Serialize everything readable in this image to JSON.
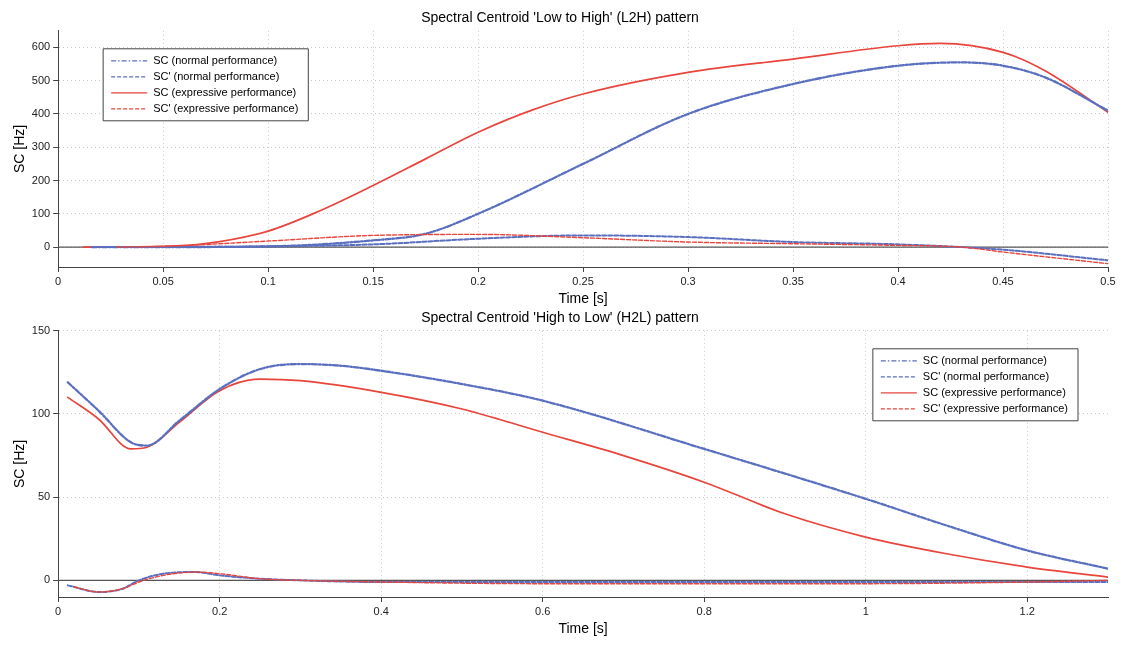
{
  "chart_data": [
    {
      "type": "line",
      "title": "Spectral Centroid 'Low to High' (L2H) pattern",
      "xlabel": "Time [s]",
      "ylabel": "SC [Hz]",
      "xlim": [
        0,
        0.5
      ],
      "xticks": [
        0,
        0.05,
        0.1,
        0.15,
        0.2,
        0.25,
        0.3,
        0.35,
        0.4,
        0.45,
        0.5
      ],
      "ylim": [
        -60,
        650
      ],
      "yticks": [
        0,
        100,
        200,
        300,
        400,
        500,
        600
      ],
      "grid": true,
      "legend": "top left",
      "ref_lines": [
        {
          "axis": "y",
          "value": 0,
          "color": "#555555",
          "line_style": "solid"
        }
      ],
      "series": [
        {
          "name": "SC (normal performance)",
          "color": "#5a6fbf",
          "line_style": "dashdot",
          "x": [
            0.016,
            0.05,
            0.1,
            0.15,
            0.175,
            0.2,
            0.25,
            0.3,
            0.35,
            0.4,
            0.43,
            0.45,
            0.47,
            0.5
          ],
          "values": [
            0,
            0,
            2,
            20,
            40,
            100,
            250,
            400,
            490,
            545,
            555,
            545,
            510,
            410
          ]
        },
        {
          "name": "SC' (normal performance)",
          "color": "#5a6fbf",
          "line_style": "dashed",
          "x": [
            0.022,
            0.05,
            0.1,
            0.15,
            0.2,
            0.25,
            0.3,
            0.35,
            0.4,
            0.45,
            0.5
          ],
          "values": [
            0,
            0,
            2,
            8,
            25,
            35,
            30,
            15,
            8,
            -8,
            -40
          ]
        },
        {
          "name": "SC (expressive performance)",
          "color": "#e8453c",
          "line_style": "solid",
          "x": [
            0.012,
            0.05,
            0.07,
            0.1,
            0.125,
            0.15,
            0.175,
            0.2,
            0.225,
            0.25,
            0.3,
            0.35,
            0.4,
            0.42,
            0.45,
            0.47,
            0.5
          ],
          "values": [
            0,
            2,
            10,
            48,
            110,
            185,
            265,
            345,
            410,
            460,
            525,
            565,
            605,
            612,
            585,
            530,
            405
          ]
        },
        {
          "name": "SC' (expressive performance)",
          "color": "#e8453c",
          "line_style": "dashed",
          "x": [
            0.028,
            0.05,
            0.1,
            0.15,
            0.2,
            0.25,
            0.3,
            0.35,
            0.4,
            0.43,
            0.45,
            0.5
          ],
          "values": [
            0,
            2,
            18,
            35,
            38,
            28,
            15,
            10,
            5,
            0,
            -15,
            -50
          ]
        }
      ]
    },
    {
      "type": "line",
      "title": "Spectral Centroid 'High to Low' (H2L) pattern",
      "xlabel": "Time [s]",
      "ylabel": "SC [Hz]",
      "xlim": [
        0,
        1.3
      ],
      "xticks": [
        0,
        0.2,
        0.4,
        0.6,
        0.8,
        1,
        1.2
      ],
      "ylim": [
        -10,
        150
      ],
      "yticks": [
        0,
        50,
        100,
        150
      ],
      "grid": true,
      "legend": "top right",
      "ref_lines": [
        {
          "axis": "y",
          "value": 0,
          "color": "#555555",
          "line_style": "solid"
        }
      ],
      "series": [
        {
          "name": "SC (normal performance)",
          "color": "#5a6fbf",
          "line_style": "dashdot",
          "x": [
            0.012,
            0.05,
            0.09,
            0.11,
            0.15,
            0.2,
            0.25,
            0.3,
            0.35,
            0.4,
            0.5,
            0.6,
            0.8,
            1,
            1.1,
            1.2,
            1.3
          ],
          "values": [
            119,
            102,
            83,
            81,
            96,
            115,
            127,
            130,
            129,
            126,
            118,
            108,
            79,
            49,
            33,
            18,
            7
          ]
        },
        {
          "name": "SC' (normal performance)",
          "color": "#5a6fbf",
          "line_style": "dashed",
          "x": [
            0.012,
            0.05,
            0.08,
            0.1,
            0.13,
            0.17,
            0.2,
            0.25,
            0.3,
            0.4,
            0.6,
            0.8,
            1,
            1.2,
            1.3
          ],
          "values": [
            -3,
            -7,
            -5,
            0,
            4,
            5,
            3,
            1,
            0,
            -1,
            -1,
            -1,
            -1,
            -1,
            -1
          ]
        },
        {
          "name": "SC (expressive performance)",
          "color": "#e8453c",
          "line_style": "solid",
          "x": [
            0.012,
            0.05,
            0.09,
            0.11,
            0.15,
            0.2,
            0.25,
            0.3,
            0.4,
            0.5,
            0.6,
            0.7,
            0.8,
            0.9,
            1,
            1.1,
            1.2,
            1.3
          ],
          "values": [
            110,
            97,
            79,
            80,
            95,
            114,
            121,
            120,
            113,
            103,
            89,
            75,
            59,
            40,
            26,
            16,
            8,
            2
          ]
        },
        {
          "name": "SC' (expressive performance)",
          "color": "#e8453c",
          "line_style": "dashed",
          "x": [
            0.02,
            0.05,
            0.08,
            0.1,
            0.13,
            0.17,
            0.2,
            0.25,
            0.3,
            0.4,
            0.6,
            0.8,
            1,
            1.2,
            1.3
          ],
          "values": [
            -4,
            -7,
            -5,
            -1,
            3,
            5,
            4,
            1,
            0,
            -1,
            -2,
            -2,
            -2,
            -1,
            0
          ]
        }
      ]
    }
  ]
}
